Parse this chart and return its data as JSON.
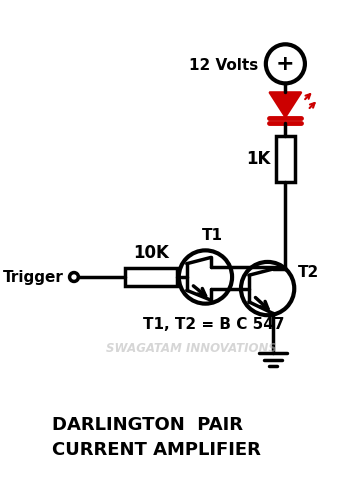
{
  "title": "DARLINGTON  PAIR\nCURRENT AMPLIFIER",
  "bg_color": "#ffffff",
  "line_color": "#000000",
  "red_color": "#cc0000",
  "label_12v": "12 Volts",
  "label_1k": "1K",
  "label_10k": "10K",
  "label_trigger": "Trigger",
  "label_t1": "T1",
  "label_t2": "T2",
  "label_bc": "T1, T2 = B C 547",
  "watermark": "SWAGATAM INNOVATIONS",
  "figsize": [
    3.44,
    4.8
  ],
  "dpi": 100
}
